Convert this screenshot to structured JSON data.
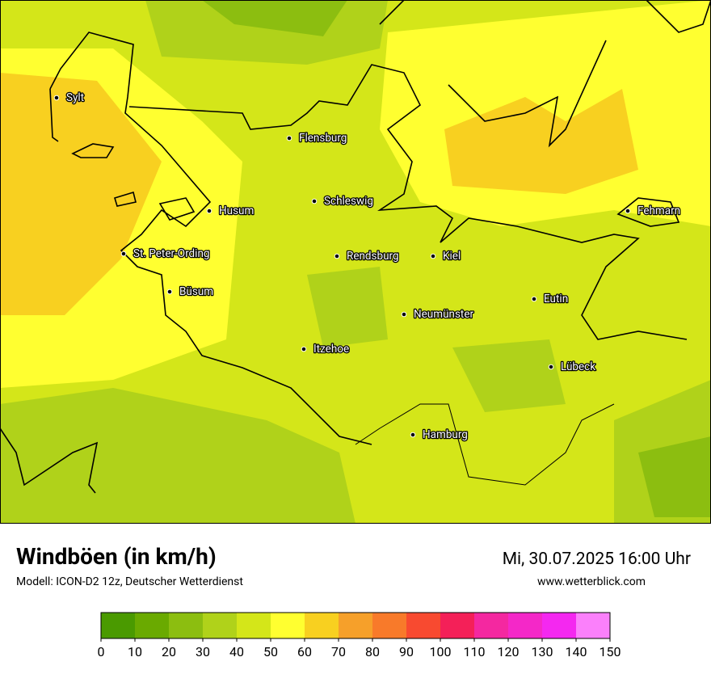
{
  "header": {
    "title": "Windböen (in km/h)",
    "subtitle": "Modell: ICON-D2 12z, Deutscher Wetterdienst",
    "date": "Mi, 30.07.2025 16:00 Uhr",
    "website": "www.wetterblick.com"
  },
  "cities": [
    "Sylt",
    "Flensburg",
    "Schleswig",
    "Husum",
    "Fehmarn",
    "St. Peter-Ording",
    "Rendsburg",
    "Kiel",
    "Büsum",
    "Eutin",
    "Neumünster",
    "Itzehoe",
    "Lübeck",
    "Hamburg"
  ],
  "legend": {
    "ticks": [
      0,
      10,
      20,
      30,
      40,
      50,
      60,
      70,
      80,
      90,
      100,
      110,
      120,
      130,
      140,
      150
    ],
    "colors": [
      "#4a9a00",
      "#6aaa00",
      "#8cbe10",
      "#b0d21a",
      "#d4e619",
      "#ffff30",
      "#f8d020",
      "#f6a02a",
      "#f87a2a",
      "#f84a30",
      "#f42058",
      "#f428a0",
      "#f428c8",
      "#f428f0",
      "#fb80fb"
    ]
  }
}
